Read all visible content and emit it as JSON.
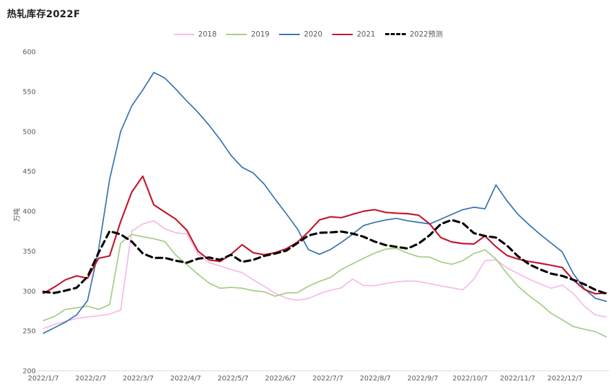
{
  "title": "热轧库存2022F",
  "y_axis": {
    "unit_label": "万吨",
    "min": 200,
    "max": 600,
    "tick_step": 50,
    "ticks": [
      200,
      250,
      300,
      350,
      400,
      450,
      500,
      550,
      600
    ]
  },
  "x_axis": {
    "tick_labels": [
      "2022/1/7",
      "2022/2/7",
      "2022/3/7",
      "2022/4/7",
      "2022/5/7",
      "2022/6/7",
      "2022/7/7",
      "2022/8/7",
      "2022/9/7",
      "2022/10/7",
      "2022/11/7",
      "2022/12/7"
    ]
  },
  "colors": {
    "s2018": "#f5bce8",
    "s2019": "#a5ce87",
    "s2020": "#3876b4",
    "s2021": "#c4162c",
    "s2022": "#000000",
    "axis_text": "#595959",
    "axis_line": "#d9d9d9",
    "title_text": "#1f1f1f"
  },
  "chart_data": {
    "type": "line",
    "title": "热轧库存2022F",
    "ylabel": "万吨",
    "ylim": [
      200,
      600
    ],
    "grid": false,
    "legend_position": "top",
    "x_unit": "week (52 weekly samples, week 0 = 2022/1/7, week 51 ≈ 2022/12/30)",
    "x_tick_labels": [
      "2022/1/7",
      "2022/2/7",
      "2022/3/7",
      "2022/4/7",
      "2022/5/7",
      "2022/6/7",
      "2022/7/7",
      "2022/8/7",
      "2022/9/7",
      "2022/10/7",
      "2022/11/7",
      "2022/12/7"
    ],
    "series": [
      {
        "name": "2018",
        "style": "solid",
        "color": "#f5bce8",
        "values": [
          253,
          258,
          262,
          265.5,
          267.5,
          269,
          271,
          276,
          375,
          384,
          388,
          378,
          373,
          371.5,
          346,
          335.5,
          331.5,
          327,
          323,
          314,
          306,
          297,
          291,
          288.5,
          290.5,
          296.5,
          301,
          304,
          315,
          307,
          306.5,
          309.5,
          311.5,
          312.5,
          312,
          309,
          306.5,
          304,
          301.5,
          315,
          338,
          339,
          329,
          322,
          315,
          309,
          303.5,
          307.5,
          297,
          281,
          270,
          267.5
        ]
      },
      {
        "name": "2019",
        "style": "solid",
        "color": "#a5ce87",
        "values": [
          263,
          268,
          277,
          279,
          281,
          277,
          283,
          360,
          371,
          368,
          365.5,
          362,
          345,
          333,
          321,
          310,
          303.5,
          304.5,
          303.5,
          300.5,
          299,
          293.5,
          297.5,
          298,
          306,
          312,
          317,
          327,
          334,
          341,
          347.5,
          352.5,
          353.5,
          347.5,
          343,
          342.5,
          336.5,
          333.5,
          338,
          347,
          351.5,
          340,
          322,
          306,
          294,
          284,
          272,
          264,
          255.5,
          252,
          249,
          242.5
        ]
      },
      {
        "name": "2020",
        "style": "solid",
        "color": "#3876b4",
        "values": [
          247,
          254,
          261,
          270,
          288,
          352,
          440,
          500,
          532,
          552,
          574,
          567,
          553,
          538,
          524,
          508,
          490,
          470,
          455,
          448,
          434,
          415,
          397,
          378,
          352,
          346,
          352,
          361,
          371,
          382,
          386,
          389,
          391,
          388,
          386,
          384,
          390,
          396,
          402,
          405,
          403,
          433,
          413,
          396,
          383,
          371,
          360,
          349,
          322,
          303,
          291,
          287
        ]
      },
      {
        "name": "2021",
        "style": "solid",
        "color": "#c4162c",
        "values": [
          297,
          305,
          314,
          319,
          316,
          341,
          344,
          387,
          424,
          444,
          408,
          399,
          390,
          376,
          350,
          339,
          337,
          346,
          358,
          348,
          345.5,
          348,
          353,
          361,
          374,
          389,
          393,
          392,
          396,
          400,
          402,
          398.5,
          397.5,
          397,
          395,
          384,
          367,
          361.5,
          359.5,
          359,
          369,
          355.5,
          344.5,
          340,
          337,
          334.8,
          332.3,
          329.5,
          314,
          302,
          296.5,
          297.5
        ]
      },
      {
        "name": "2022预测",
        "style": "dashed",
        "color": "#000000",
        "values": [
          299,
          297.5,
          300.5,
          304,
          318,
          348,
          375,
          371,
          362,
          347,
          341.5,
          341.5,
          338,
          335.5,
          340.5,
          342,
          339,
          345.5,
          336.5,
          339,
          344,
          347,
          350.5,
          360,
          369.5,
          373,
          373.5,
          374.5,
          372,
          368,
          362,
          357.5,
          355.3,
          353.3,
          359.5,
          370,
          384,
          389,
          385,
          372.5,
          369,
          367,
          357,
          343.5,
          333.5,
          327,
          321.7,
          319,
          314,
          308.5,
          301.5,
          296.5
        ]
      }
    ]
  },
  "legend": [
    {
      "label": "2018",
      "color": "#f5bce8",
      "style": "solid"
    },
    {
      "label": "2019",
      "color": "#a5ce87",
      "style": "solid"
    },
    {
      "label": "2020",
      "color": "#3876b4",
      "style": "solid"
    },
    {
      "label": "2021",
      "color": "#c4162c",
      "style": "solid"
    },
    {
      "label": "2022预测",
      "color": "#000000",
      "style": "dashed"
    }
  ]
}
